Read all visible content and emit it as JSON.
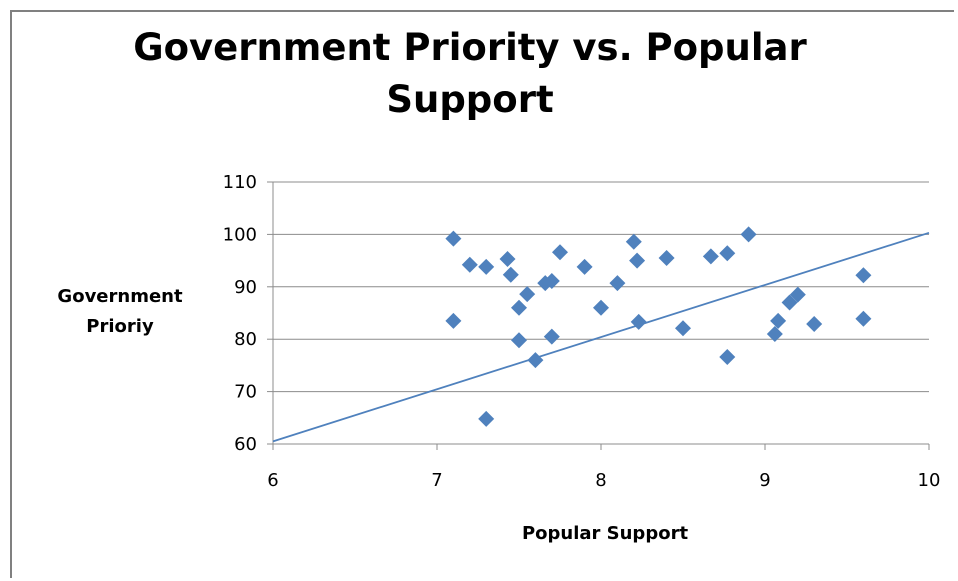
{
  "chart_data": {
    "type": "scatter",
    "title_line1": "Government Priority vs. Popular",
    "title_line2": "Support",
    "xlabel": "Popular Support",
    "ylabel_line1": "Government",
    "ylabel_line2": "Prioriy",
    "xlim": [
      6,
      10
    ],
    "ylim": [
      60,
      110
    ],
    "xticks": [
      6,
      7,
      8,
      9,
      10
    ],
    "yticks": [
      60,
      70,
      80,
      90,
      100,
      110
    ],
    "grid": "horizontal",
    "marker_color": "#4f81bd",
    "trendline_color": "#4f81bd",
    "trendline": [
      {
        "x": 6,
        "y": 60.5
      },
      {
        "x": 10,
        "y": 100.3
      }
    ],
    "points": [
      {
        "x": 7.1,
        "y": 99.2
      },
      {
        "x": 7.1,
        "y": 83.5
      },
      {
        "x": 7.2,
        "y": 94.2
      },
      {
        "x": 7.3,
        "y": 93.8
      },
      {
        "x": 7.3,
        "y": 64.8
      },
      {
        "x": 7.43,
        "y": 95.3
      },
      {
        "x": 7.45,
        "y": 92.3
      },
      {
        "x": 7.5,
        "y": 86.0
      },
      {
        "x": 7.5,
        "y": 79.8
      },
      {
        "x": 7.55,
        "y": 88.6
      },
      {
        "x": 7.6,
        "y": 76.0
      },
      {
        "x": 7.66,
        "y": 90.7
      },
      {
        "x": 7.7,
        "y": 91.1
      },
      {
        "x": 7.7,
        "y": 80.5
      },
      {
        "x": 7.75,
        "y": 96.6
      },
      {
        "x": 7.9,
        "y": 93.8
      },
      {
        "x": 8.0,
        "y": 86.0
      },
      {
        "x": 8.1,
        "y": 90.7
      },
      {
        "x": 8.2,
        "y": 98.6
      },
      {
        "x": 8.22,
        "y": 95.0
      },
      {
        "x": 8.23,
        "y": 83.3
      },
      {
        "x": 8.4,
        "y": 95.5
      },
      {
        "x": 8.5,
        "y": 82.1
      },
      {
        "x": 8.67,
        "y": 95.8
      },
      {
        "x": 8.77,
        "y": 96.4
      },
      {
        "x": 8.77,
        "y": 76.6
      },
      {
        "x": 8.9,
        "y": 100.0
      },
      {
        "x": 9.06,
        "y": 81.0
      },
      {
        "x": 9.08,
        "y": 83.5
      },
      {
        "x": 9.15,
        "y": 87.0
      },
      {
        "x": 9.2,
        "y": 88.5
      },
      {
        "x": 9.3,
        "y": 82.9
      },
      {
        "x": 9.6,
        "y": 92.2
      },
      {
        "x": 9.6,
        "y": 83.9
      }
    ]
  }
}
